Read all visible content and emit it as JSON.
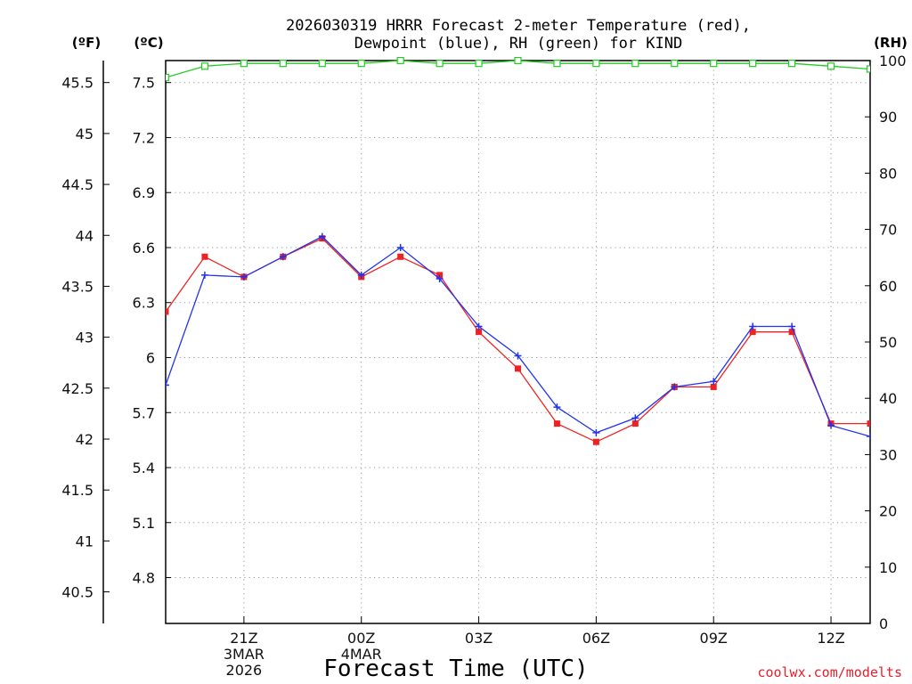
{
  "chart_data": {
    "type": "line",
    "title_line1": "2026030319 HRRR Forecast 2-meter Temperature (red),",
    "title_line2": "Dewpoint (blue), RH (green) for KIND",
    "unit_f": "(ºF)",
    "unit_c": "(ºC)",
    "unit_rh": "(RH)",
    "xlabel": "Forecast Time (UTC)",
    "credit": "coolwx.com/modelts",
    "x_hours": [
      -2,
      -1,
      0,
      1,
      2,
      3,
      4,
      5,
      6,
      7,
      8,
      9,
      10,
      11,
      12,
      13,
      14,
      15,
      16,
      17,
      18
    ],
    "x_ticks": [
      {
        "hour": 0,
        "lines": [
          "21Z",
          "3MAR",
          "2026"
        ]
      },
      {
        "hour": 3,
        "lines": [
          "00Z",
          "4MAR"
        ]
      },
      {
        "hour": 6,
        "lines": [
          "03Z"
        ]
      },
      {
        "hour": 9,
        "lines": [
          "06Z"
        ]
      },
      {
        "hour": 12,
        "lines": [
          "09Z"
        ]
      },
      {
        "hour": 15,
        "lines": [
          "12Z"
        ]
      }
    ],
    "xlim": [
      -2,
      16
    ],
    "c_axis": {
      "ylim": [
        4.55,
        7.62
      ],
      "ticks": [
        "4.8",
        "5.1",
        "5.4",
        "5.7",
        "6",
        "6.3",
        "6.6",
        "6.9",
        "7.2",
        "7.5"
      ]
    },
    "f_axis": {
      "ylim": [
        40.19,
        45.716
      ],
      "ticks": [
        "40.5",
        "41",
        "41.5",
        "42",
        "42.5",
        "43",
        "43.5",
        "44",
        "44.5",
        "45",
        "45.5"
      ]
    },
    "rh_axis": {
      "ylim": [
        0,
        100
      ],
      "ticks": [
        "0",
        "10",
        "20",
        "30",
        "40",
        "50",
        "60",
        "70",
        "80",
        "90",
        "100"
      ]
    },
    "series": [
      {
        "name": "Temperature",
        "color": "#ee2222",
        "marker": "square",
        "axis": "c",
        "values": [
          6.25,
          6.55,
          6.44,
          6.55,
          6.65,
          6.44,
          6.55,
          6.45,
          6.14,
          5.94,
          5.64,
          5.54,
          5.64,
          5.84,
          5.84,
          6.14,
          6.14,
          5.64,
          5.64
        ]
      },
      {
        "name": "Dewpoint",
        "color": "#2233ee",
        "marker": "plus",
        "axis": "c",
        "values": [
          5.85,
          6.45,
          6.44,
          6.55,
          6.66,
          6.45,
          6.6,
          6.43,
          6.17,
          6.01,
          5.73,
          5.59,
          5.67,
          5.84,
          5.87,
          6.17,
          6.17,
          5.63,
          5.57
        ]
      },
      {
        "name": "RH",
        "color": "#22cc22",
        "marker": "open-square",
        "axis": "rh",
        "values": [
          97,
          99,
          99.5,
          99.5,
          99.5,
          99.5,
          100,
          99.5,
          99.5,
          100,
          99.5,
          99.5,
          99.5,
          99.5,
          99.5,
          99.5,
          99.5,
          99,
          98.5
        ]
      }
    ]
  }
}
